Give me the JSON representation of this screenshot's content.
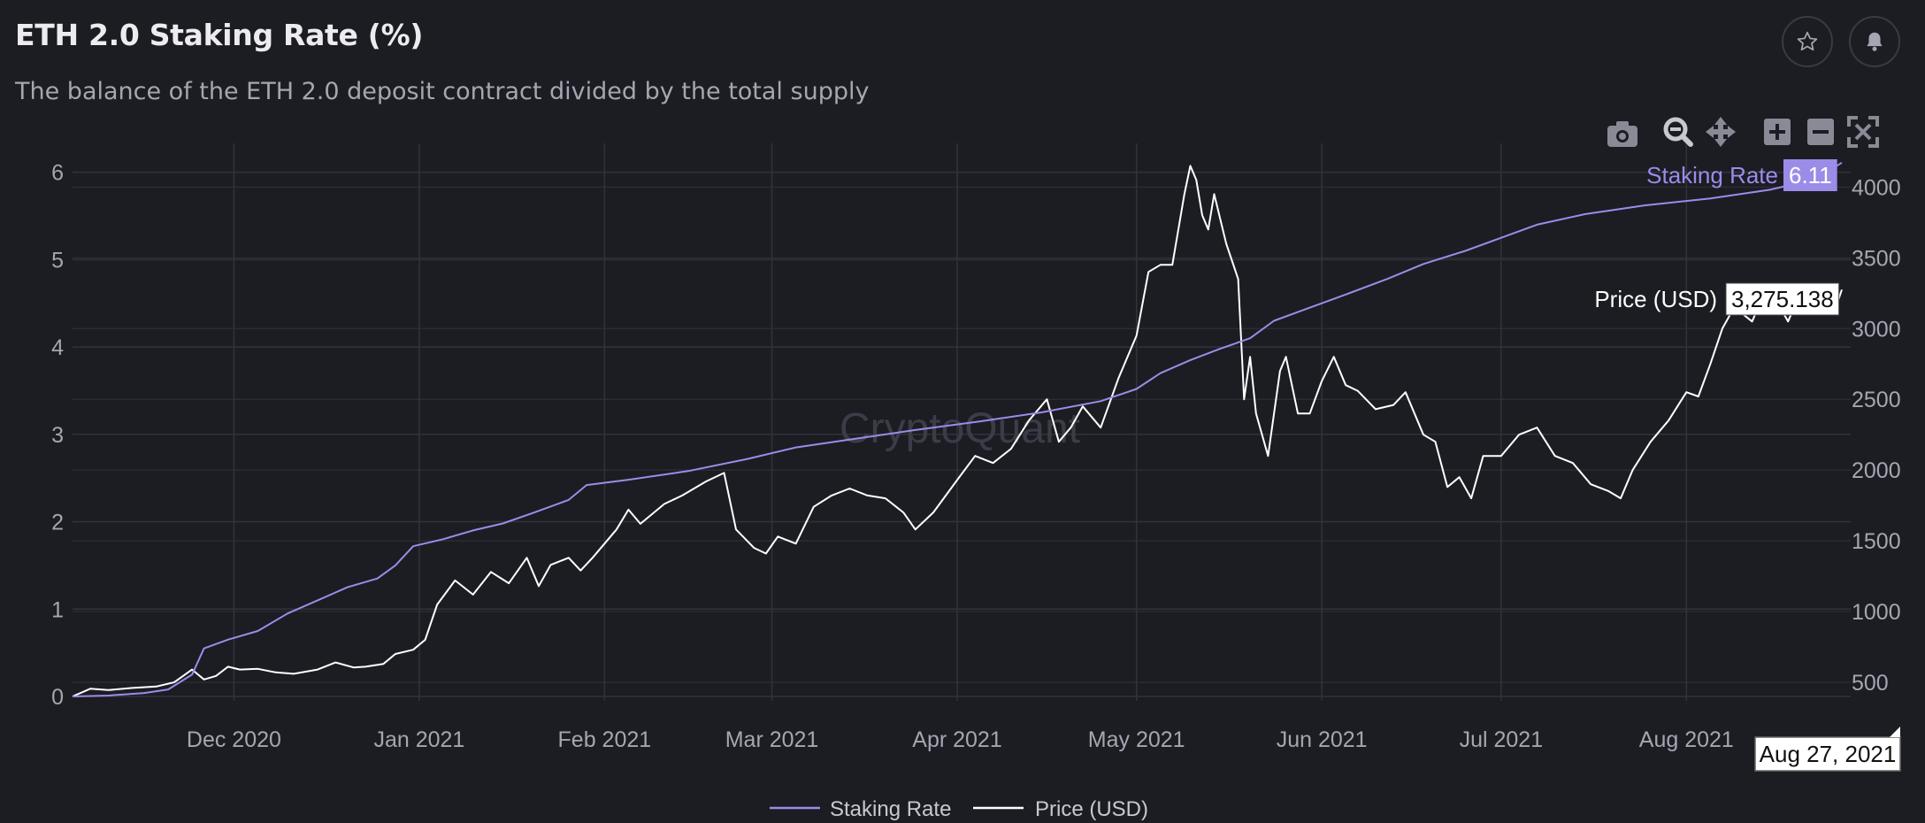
{
  "header": {
    "title": "ETH 2.0 Staking Rate (%)",
    "subtitle": "The balance of the ETH 2.0 deposit contract divided by the total supply"
  },
  "toolbar": {
    "icons": [
      "camera-icon",
      "zoom-icon",
      "pan-icon",
      "zoom-in-icon",
      "zoom-out-icon",
      "autoscale-icon"
    ],
    "header_icons": [
      "star-icon",
      "bell-icon"
    ]
  },
  "watermark": "CryptoQuant",
  "colors": {
    "background": "#1c1c23",
    "staking": "#9b8ce8",
    "price": "#ffffff",
    "grid": "#32323c",
    "tick": "#a6a6b2"
  },
  "chart_data": {
    "type": "line",
    "title": "ETH 2.0 Staking Rate (%)",
    "x_range": [
      "2020-11-04",
      "2021-08-27"
    ],
    "x_ticks": [
      {
        "label": "Dec 2020",
        "date": "2020-12-01"
      },
      {
        "label": "Jan 2021",
        "date": "2021-01-01"
      },
      {
        "label": "Feb 2021",
        "date": "2021-02-01"
      },
      {
        "label": "Mar 2021",
        "date": "2021-03-01"
      },
      {
        "label": "Apr 2021",
        "date": "2021-04-01"
      },
      {
        "label": "May 2021",
        "date": "2021-05-01"
      },
      {
        "label": "Jun 2021",
        "date": "2021-06-01"
      },
      {
        "label": "Jul 2021",
        "date": "2021-07-01"
      },
      {
        "label": "Aug 2021",
        "date": "2021-08-01"
      }
    ],
    "y_left": {
      "ticks": [
        0,
        1,
        2,
        3,
        4,
        5,
        6
      ],
      "range": [
        0,
        6.3
      ]
    },
    "y_right": {
      "ticks": [
        500,
        1000,
        1500,
        2000,
        2500,
        3000,
        3500,
        4000
      ],
      "range": [
        400,
        4290
      ]
    },
    "series": [
      {
        "name": "Staking Rate",
        "axis": "left",
        "points": [
          [
            "2020-11-04",
            0.0
          ],
          [
            "2020-11-10",
            0.01
          ],
          [
            "2020-11-16",
            0.04
          ],
          [
            "2020-11-20",
            0.08
          ],
          [
            "2020-11-24",
            0.25
          ],
          [
            "2020-11-26",
            0.55
          ],
          [
            "2020-11-30",
            0.65
          ],
          [
            "2020-12-05",
            0.75
          ],
          [
            "2020-12-10",
            0.95
          ],
          [
            "2020-12-15",
            1.1
          ],
          [
            "2020-12-20",
            1.25
          ],
          [
            "2020-12-25",
            1.35
          ],
          [
            "2020-12-28",
            1.5
          ],
          [
            "2020-12-31",
            1.72
          ],
          [
            "2021-01-05",
            1.8
          ],
          [
            "2021-01-10",
            1.9
          ],
          [
            "2021-01-15",
            1.98
          ],
          [
            "2021-01-20",
            2.1
          ],
          [
            "2021-01-26",
            2.25
          ],
          [
            "2021-01-29",
            2.42
          ],
          [
            "2021-02-05",
            2.48
          ],
          [
            "2021-02-15",
            2.58
          ],
          [
            "2021-02-25",
            2.72
          ],
          [
            "2021-03-05",
            2.85
          ],
          [
            "2021-03-15",
            2.95
          ],
          [
            "2021-03-25",
            3.05
          ],
          [
            "2021-04-05",
            3.15
          ],
          [
            "2021-04-15",
            3.25
          ],
          [
            "2021-04-25",
            3.38
          ],
          [
            "2021-05-01",
            3.52
          ],
          [
            "2021-05-05",
            3.7
          ],
          [
            "2021-05-10",
            3.85
          ],
          [
            "2021-05-15",
            3.98
          ],
          [
            "2021-05-20",
            4.1
          ],
          [
            "2021-05-24",
            4.3
          ],
          [
            "2021-05-28",
            4.4
          ],
          [
            "2021-06-05",
            4.6
          ],
          [
            "2021-06-12",
            4.78
          ],
          [
            "2021-06-18",
            4.95
          ],
          [
            "2021-06-25",
            5.1
          ],
          [
            "2021-07-01",
            5.25
          ],
          [
            "2021-07-07",
            5.4
          ],
          [
            "2021-07-15",
            5.52
          ],
          [
            "2021-07-25",
            5.62
          ],
          [
            "2021-08-05",
            5.7
          ],
          [
            "2021-08-15",
            5.8
          ],
          [
            "2021-08-20",
            5.88
          ],
          [
            "2021-08-24",
            5.98
          ],
          [
            "2021-08-27",
            6.11
          ]
        ]
      },
      {
        "name": "Price (USD)",
        "axis": "right",
        "points": [
          [
            "2020-11-04",
            400
          ],
          [
            "2020-11-07",
            455
          ],
          [
            "2020-11-10",
            445
          ],
          [
            "2020-11-14",
            460
          ],
          [
            "2020-11-18",
            470
          ],
          [
            "2020-11-21",
            500
          ],
          [
            "2020-11-24",
            590
          ],
          [
            "2020-11-26",
            520
          ],
          [
            "2020-11-28",
            545
          ],
          [
            "2020-11-30",
            610
          ],
          [
            "2020-12-02",
            590
          ],
          [
            "2020-12-05",
            595
          ],
          [
            "2020-12-08",
            570
          ],
          [
            "2020-12-11",
            560
          ],
          [
            "2020-12-15",
            590
          ],
          [
            "2020-12-18",
            640
          ],
          [
            "2020-12-21",
            605
          ],
          [
            "2020-12-23",
            610
          ],
          [
            "2020-12-26",
            630
          ],
          [
            "2020-12-28",
            700
          ],
          [
            "2020-12-31",
            730
          ],
          [
            "2021-01-02",
            800
          ],
          [
            "2021-01-04",
            1050
          ],
          [
            "2021-01-07",
            1220
          ],
          [
            "2021-01-10",
            1120
          ],
          [
            "2021-01-13",
            1280
          ],
          [
            "2021-01-16",
            1200
          ],
          [
            "2021-01-19",
            1380
          ],
          [
            "2021-01-21",
            1180
          ],
          [
            "2021-01-23",
            1330
          ],
          [
            "2021-01-26",
            1380
          ],
          [
            "2021-01-28",
            1290
          ],
          [
            "2021-01-30",
            1380
          ],
          [
            "2021-02-03",
            1580
          ],
          [
            "2021-02-05",
            1720
          ],
          [
            "2021-02-07",
            1620
          ],
          [
            "2021-02-11",
            1760
          ],
          [
            "2021-02-14",
            1820
          ],
          [
            "2021-02-18",
            1920
          ],
          [
            "2021-02-21",
            1980
          ],
          [
            "2021-02-23",
            1580
          ],
          [
            "2021-02-26",
            1450
          ],
          [
            "2021-02-28",
            1410
          ],
          [
            "2021-03-02",
            1530
          ],
          [
            "2021-03-05",
            1480
          ],
          [
            "2021-03-08",
            1740
          ],
          [
            "2021-03-11",
            1820
          ],
          [
            "2021-03-14",
            1870
          ],
          [
            "2021-03-17",
            1820
          ],
          [
            "2021-03-20",
            1800
          ],
          [
            "2021-03-23",
            1700
          ],
          [
            "2021-03-25",
            1580
          ],
          [
            "2021-03-28",
            1700
          ],
          [
            "2021-04-01",
            1930
          ],
          [
            "2021-04-04",
            2100
          ],
          [
            "2021-04-07",
            2050
          ],
          [
            "2021-04-10",
            2150
          ],
          [
            "2021-04-13",
            2350
          ],
          [
            "2021-04-16",
            2500
          ],
          [
            "2021-04-18",
            2200
          ],
          [
            "2021-04-20",
            2300
          ],
          [
            "2021-04-22",
            2450
          ],
          [
            "2021-04-25",
            2300
          ],
          [
            "2021-04-28",
            2650
          ],
          [
            "2021-05-01",
            2950
          ],
          [
            "2021-05-03",
            3400
          ],
          [
            "2021-05-05",
            3450
          ],
          [
            "2021-05-07",
            3450
          ],
          [
            "2021-05-09",
            3950
          ],
          [
            "2021-05-10",
            4150
          ],
          [
            "2021-05-11",
            4050
          ],
          [
            "2021-05-12",
            3800
          ],
          [
            "2021-05-13",
            3700
          ],
          [
            "2021-05-14",
            3950
          ],
          [
            "2021-05-16",
            3600
          ],
          [
            "2021-05-18",
            3350
          ],
          [
            "2021-05-19",
            2500
          ],
          [
            "2021-05-20",
            2800
          ],
          [
            "2021-05-21",
            2400
          ],
          [
            "2021-05-23",
            2100
          ],
          [
            "2021-05-25",
            2700
          ],
          [
            "2021-05-26",
            2800
          ],
          [
            "2021-05-28",
            2400
          ],
          [
            "2021-05-30",
            2400
          ],
          [
            "2021-06-01",
            2630
          ],
          [
            "2021-06-03",
            2800
          ],
          [
            "2021-06-05",
            2600
          ],
          [
            "2021-06-07",
            2560
          ],
          [
            "2021-06-10",
            2430
          ],
          [
            "2021-06-13",
            2460
          ],
          [
            "2021-06-15",
            2550
          ],
          [
            "2021-06-18",
            2250
          ],
          [
            "2021-06-20",
            2200
          ],
          [
            "2021-06-22",
            1880
          ],
          [
            "2021-06-24",
            1950
          ],
          [
            "2021-06-26",
            1800
          ],
          [
            "2021-06-28",
            2100
          ],
          [
            "2021-07-01",
            2100
          ],
          [
            "2021-07-04",
            2250
          ],
          [
            "2021-07-07",
            2300
          ],
          [
            "2021-07-10",
            2100
          ],
          [
            "2021-07-13",
            2050
          ],
          [
            "2021-07-16",
            1900
          ],
          [
            "2021-07-19",
            1850
          ],
          [
            "2021-07-21",
            1800
          ],
          [
            "2021-07-23",
            2000
          ],
          [
            "2021-07-26",
            2200
          ],
          [
            "2021-07-29",
            2350
          ],
          [
            "2021-08-01",
            2550
          ],
          [
            "2021-08-03",
            2520
          ],
          [
            "2021-08-05",
            2750
          ],
          [
            "2021-08-07",
            3000
          ],
          [
            "2021-08-09",
            3150
          ],
          [
            "2021-08-12",
            3050
          ],
          [
            "2021-08-14",
            3250
          ],
          [
            "2021-08-16",
            3200
          ],
          [
            "2021-08-18",
            3050
          ],
          [
            "2021-08-20",
            3250
          ],
          [
            "2021-08-22",
            3300
          ],
          [
            "2021-08-24",
            3250
          ],
          [
            "2021-08-26",
            3150
          ],
          [
            "2021-08-27",
            3275.138
          ]
        ]
      }
    ],
    "hover": {
      "date_label": "Aug 27, 2021",
      "staking_label": "Staking Rate",
      "staking_value": "6.11",
      "price_label": "Price (USD)",
      "price_value": "3,275.138"
    },
    "legend": {
      "position": "bottom-center",
      "items": [
        "Staking Rate",
        "Price (USD)"
      ]
    }
  }
}
